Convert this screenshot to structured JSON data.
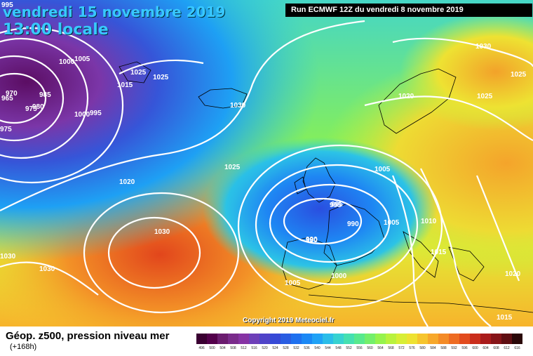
{
  "header": {
    "date": "vendredi 15 novembre 2019",
    "time": "13:00 locale",
    "run": "Run ECMWF 12Z du vendredi 8 novembre 2019"
  },
  "copyright": "Copyright 2019 Meteociel.fr",
  "legend": {
    "title": "Géop. z500, pression niveau mer",
    "subtitle": "(+168h)",
    "scale_labels": [
      "496",
      "500",
      "504",
      "508",
      "512",
      "516",
      "520",
      "524",
      "528",
      "532",
      "536",
      "540",
      "544",
      "548",
      "552",
      "556",
      "560",
      "564",
      "568",
      "572",
      "576",
      "580",
      "584",
      "588",
      "592",
      "596",
      "600",
      "604",
      "608",
      "612",
      "616"
    ],
    "scale_colors": [
      "#3a0032",
      "#53004b",
      "#6b1c6f",
      "#7a2b8b",
      "#8633a4",
      "#6e3fb8",
      "#4f43c8",
      "#3649d6",
      "#2a5de2",
      "#1f70ef",
      "#1b88f5",
      "#20a2f6",
      "#2bbde9",
      "#37d2d1",
      "#45e0b1",
      "#58e98e",
      "#74ef6b",
      "#96f34d",
      "#b9f23e",
      "#d8ee36",
      "#eee232",
      "#f6c52e",
      "#f7a82b",
      "#f48b27",
      "#ee6c23",
      "#e24b1e",
      "#ca2d1c",
      "#a91b1b",
      "#861418",
      "#5f0e12",
      "#2a0808"
    ]
  },
  "isobar_labels": [
    {
      "text": "995"
    },
    {
      "text": "990"
    },
    {
      "text": "995"
    },
    {
      "text": "1000"
    },
    {
      "text": "1005"
    },
    {
      "text": "970"
    },
    {
      "text": "985"
    },
    {
      "text": "965"
    },
    {
      "text": "975"
    },
    {
      "text": "980"
    },
    {
      "text": "1000"
    },
    {
      "text": "995"
    },
    {
      "text": "975"
    },
    {
      "text": "1025"
    },
    {
      "text": "1025"
    },
    {
      "text": "1015"
    },
    {
      "text": "1030"
    },
    {
      "text": "1025"
    },
    {
      "text": "1020"
    },
    {
      "text": "1030"
    },
    {
      "text": "1030"
    },
    {
      "text": "1030"
    },
    {
      "text": "1020"
    },
    {
      "text": "1025"
    },
    {
      "text": "1030"
    },
    {
      "text": "1025"
    },
    {
      "text": "1005"
    },
    {
      "text": "995"
    },
    {
      "text": "990"
    },
    {
      "text": "990"
    },
    {
      "text": "1005"
    },
    {
      "text": "1010"
    },
    {
      "text": "1015"
    },
    {
      "text": "1000"
    },
    {
      "text": "1005"
    },
    {
      "text": "1020"
    },
    {
      "text": "1015"
    }
  ]
}
